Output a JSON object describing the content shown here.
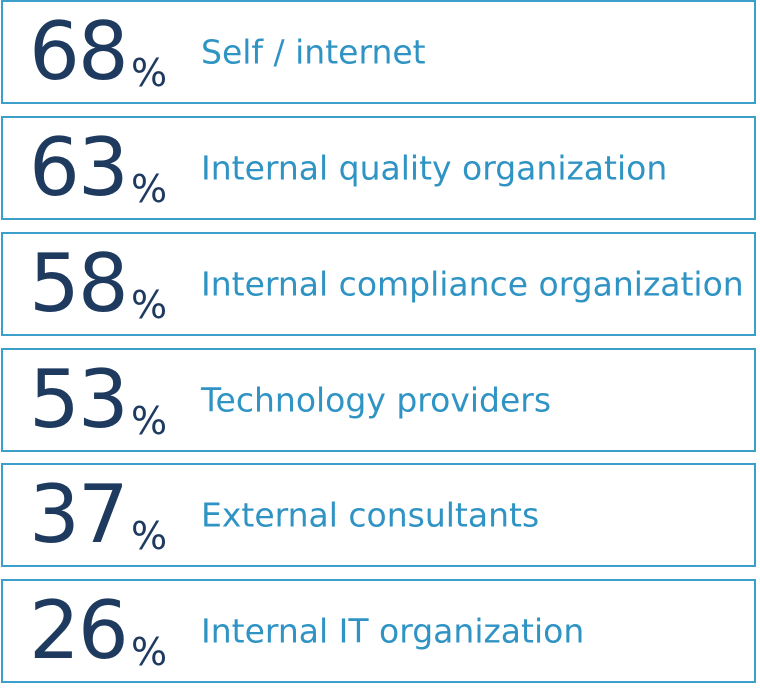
{
  "chart_data": {
    "type": "table",
    "unit": "%",
    "items": [
      {
        "value": 68,
        "label": "Self / internet"
      },
      {
        "value": 63,
        "label": "Internal quality organization"
      },
      {
        "value": 58,
        "label": "Internal compliance organization"
      },
      {
        "value": 53,
        "label": "Technology providers"
      },
      {
        "value": 37,
        "label": "External consultants"
      },
      {
        "value": 26,
        "label": "Internal IT organization"
      }
    ]
  },
  "colors": {
    "border": "#3aa0cb",
    "number": "#1e3a5f",
    "label": "#2f94c4"
  }
}
